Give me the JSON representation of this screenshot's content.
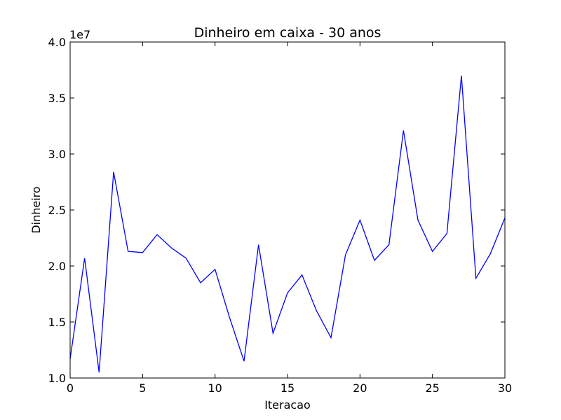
{
  "chart_data": {
    "type": "line",
    "title": "Dinheiro em caixa - 30 anos",
    "xlabel": "Iteracao",
    "ylabel": "Dinheiro",
    "offset_label": "1e7",
    "xlim": [
      0,
      30
    ],
    "ylim": [
      1.0,
      4.0
    ],
    "x_ticks": [
      0,
      5,
      10,
      15,
      20,
      25,
      30
    ],
    "x_tick_labels": [
      "0",
      "5",
      "10",
      "15",
      "20",
      "25",
      "30"
    ],
    "y_ticks": [
      1.0,
      1.5,
      2.0,
      2.5,
      3.0,
      3.5,
      4.0
    ],
    "y_tick_labels": [
      "1.0",
      "1.5",
      "2.0",
      "2.5",
      "3.0",
      "3.5",
      "4.0"
    ],
    "grid": false,
    "series": [
      {
        "color": "#0000ff",
        "x": [
          0,
          1,
          2,
          3,
          4,
          5,
          6,
          7,
          8,
          9,
          10,
          11,
          12,
          13,
          14,
          15,
          16,
          17,
          18,
          19,
          20,
          21,
          22,
          23,
          24,
          25,
          26,
          27,
          28,
          29,
          30
        ],
        "y": [
          1.17,
          2.07,
          1.05,
          2.84,
          2.13,
          2.12,
          2.28,
          2.16,
          2.07,
          1.85,
          1.97,
          1.54,
          1.15,
          2.19,
          1.4,
          1.76,
          1.92,
          1.6,
          1.36,
          2.1,
          2.41,
          2.05,
          2.19,
          3.21,
          2.41,
          2.13,
          2.29,
          3.7,
          1.89,
          2.11,
          2.43
        ]
      }
    ]
  }
}
